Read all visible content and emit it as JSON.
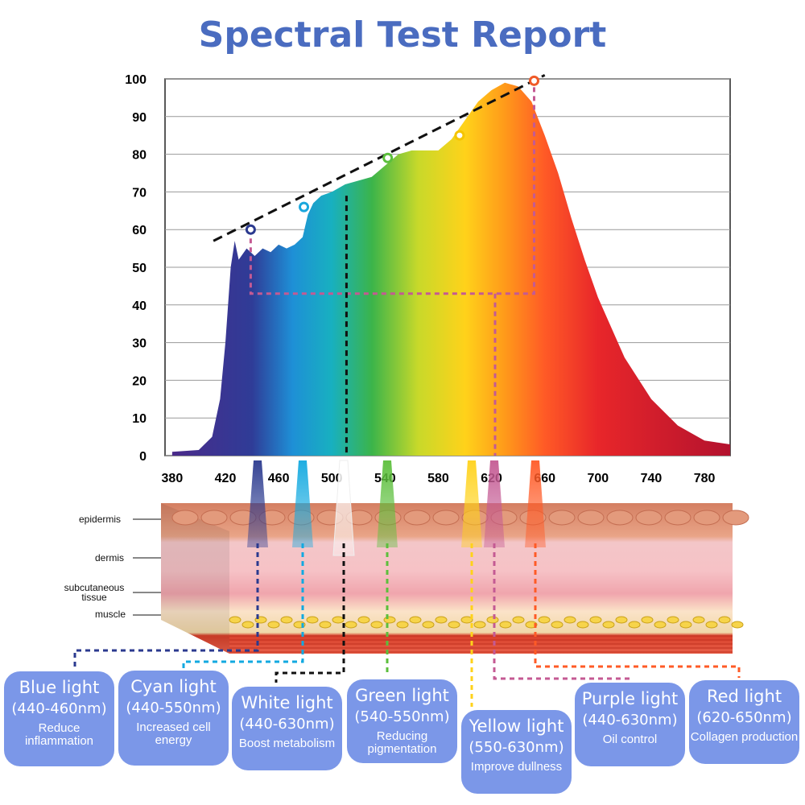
{
  "title": "Spectral Test Report",
  "chart_data": {
    "type": "area",
    "title": "Spectral Test Report",
    "xlabel": "",
    "ylabel": "",
    "xlim": [
      380,
      800
    ],
    "ylim": [
      0,
      100
    ],
    "x_ticks": [
      380,
      420,
      460,
      500,
      540,
      580,
      620,
      660,
      700,
      740,
      780
    ],
    "y_ticks": [
      0,
      10,
      20,
      30,
      40,
      50,
      60,
      70,
      80,
      90,
      100
    ],
    "grid": true,
    "spectrum": {
      "x": [
        380,
        400,
        410,
        416,
        420,
        424,
        427,
        430,
        436,
        442,
        448,
        454,
        460,
        466,
        472,
        478,
        482,
        486,
        492,
        500,
        510,
        520,
        530,
        540,
        550,
        560,
        570,
        580,
        590,
        600,
        610,
        620,
        630,
        640,
        650,
        660,
        670,
        680,
        690,
        700,
        720,
        740,
        760,
        780,
        800
      ],
      "y": [
        1,
        1.5,
        5,
        15,
        30,
        50,
        57,
        52,
        55,
        53,
        55,
        54,
        56,
        55,
        56,
        58,
        64,
        67,
        69,
        70,
        72,
        73,
        74,
        77,
        80,
        81,
        81,
        81,
        84,
        89,
        94,
        97,
        99,
        98,
        94,
        85,
        75,
        63,
        52,
        42,
        26,
        15,
        8,
        4,
        3
      ]
    },
    "markers": [
      {
        "name": "blue",
        "x": 439,
        "y": 60,
        "color": "#2b3a8f"
      },
      {
        "name": "cyan",
        "x": 479,
        "y": 66,
        "color": "#1aa7dd"
      },
      {
        "name": "green",
        "x": 542,
        "y": 79,
        "color": "#5cbf3c"
      },
      {
        "name": "yellow",
        "x": 596,
        "y": 85,
        "color": "#f5c400"
      },
      {
        "name": "red",
        "x": 652,
        "y": 99.5,
        "color": "#f05a28"
      }
    ],
    "trend_line": {
      "x": [
        411,
        660
      ],
      "y": [
        57,
        101
      ]
    },
    "reference_line_y": 43,
    "white_line_x": 511
  },
  "skin": {
    "labels": [
      "epidermis",
      "dermis",
      "subcutaneous tissue",
      "muscle"
    ]
  },
  "lights": [
    {
      "name": "Blue light",
      "range": "(440-460nm)",
      "desc": "Reduce inflammation",
      "color": "#2b3a8f"
    },
    {
      "name": "Cyan light",
      "range": "(440-550nm)",
      "desc": "Increased cell energy",
      "color": "#12a9e0"
    },
    {
      "name": "White light",
      "range": "(440-630nm)",
      "desc": "Boost metabolism",
      "color": "#111111"
    },
    {
      "name": "Green light",
      "range": "(540-550nm)",
      "desc": "Reducing pigmentation",
      "color": "#5cbf3c"
    },
    {
      "name": "Yellow light",
      "range": "(550-630nm)",
      "desc": "Improve dullness",
      "color": "#ffd21a"
    },
    {
      "name": "Purple light",
      "range": "(440-630nm)",
      "desc": "Oil control",
      "color": "#c45a93"
    },
    {
      "name": "Red light",
      "range": "(620-650nm)",
      "desc": "Collagen production",
      "color": "#ff5a26"
    }
  ]
}
